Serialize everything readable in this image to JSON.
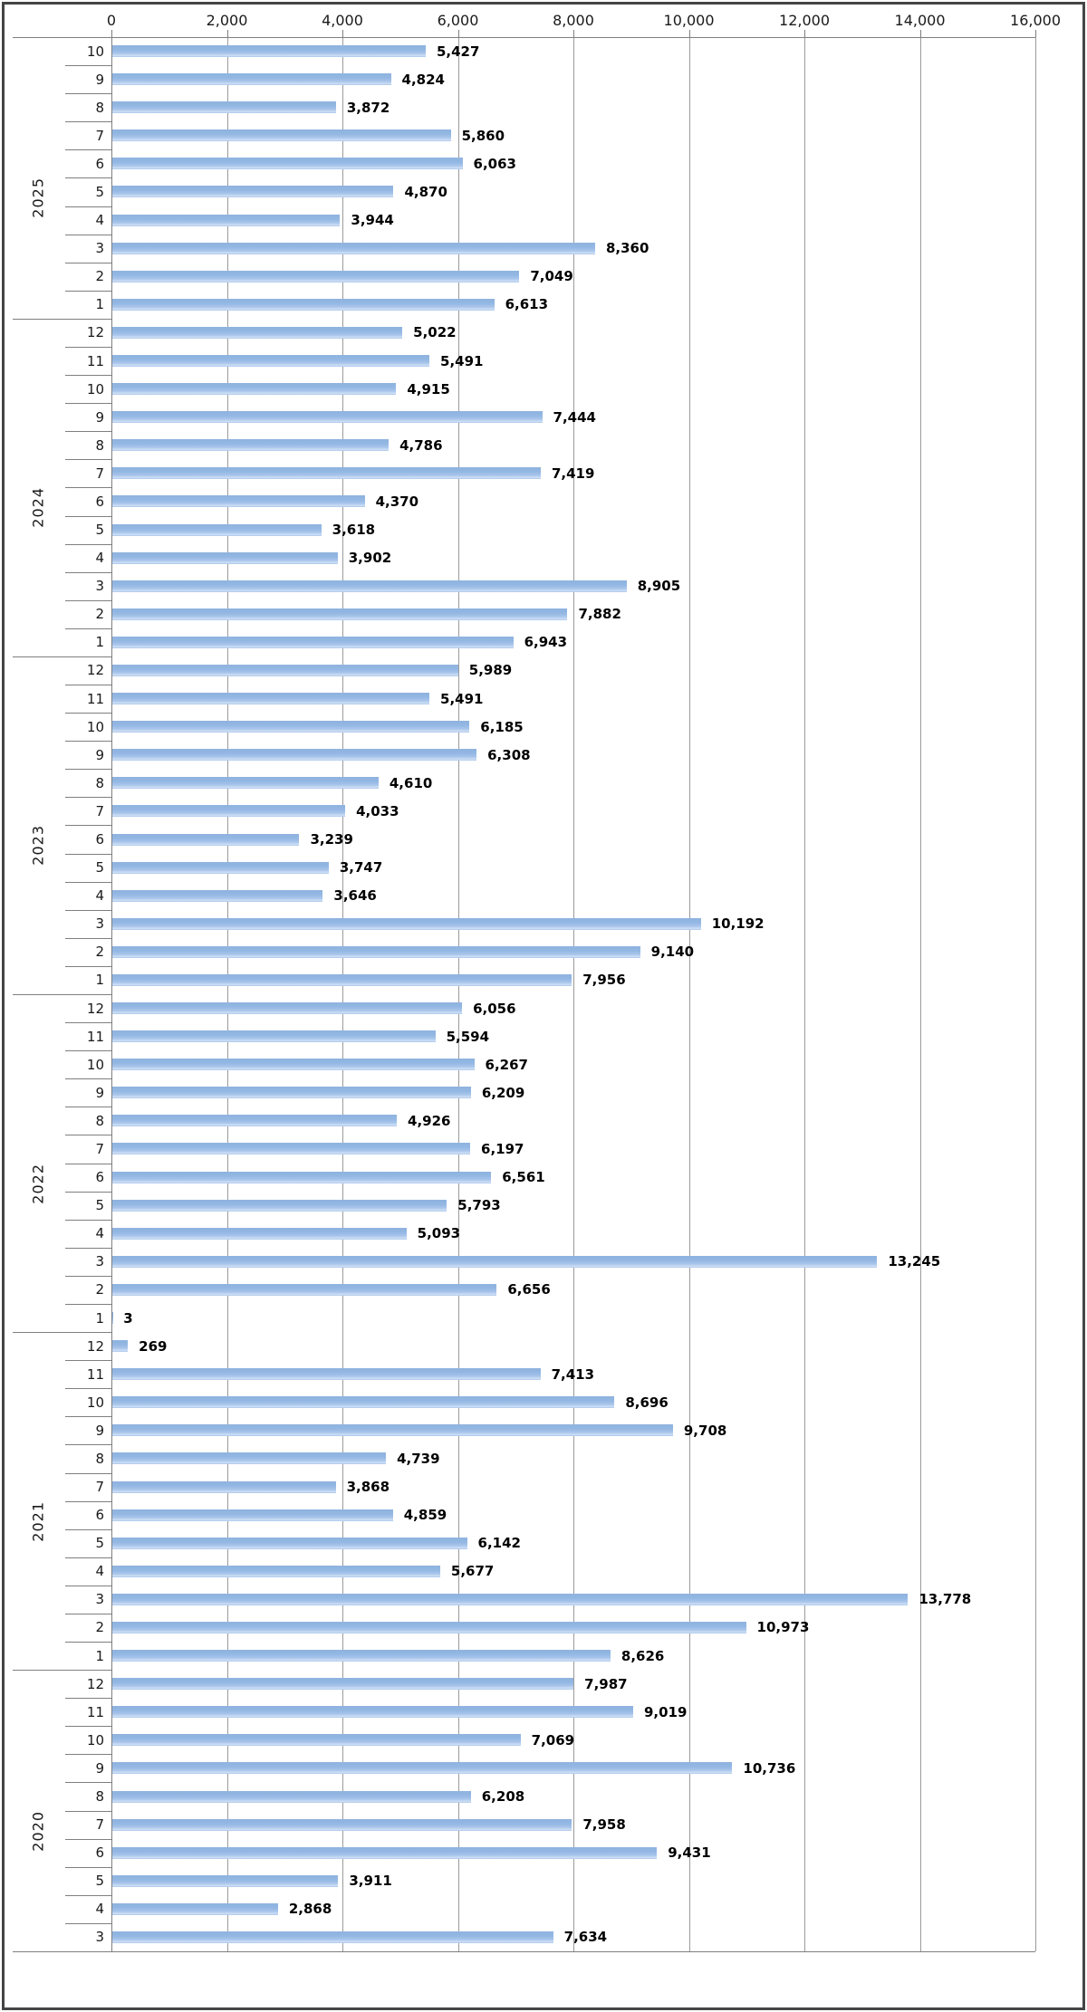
{
  "chart_data": {
    "type": "bar",
    "orientation": "horizontal",
    "title": "",
    "xlabel": "",
    "ylabel": "",
    "xlim": [
      0,
      16000
    ],
    "x_tick_values": [
      0,
      2000,
      4000,
      6000,
      8000,
      10000,
      12000,
      14000,
      16000
    ],
    "x_tick_labels": [
      "0",
      "2,000",
      "4,000",
      "6,000",
      "8,000",
      "10,000",
      "12,000",
      "14,000",
      "16,000"
    ],
    "grid": true,
    "legend": "none",
    "groups": [
      {
        "year": "2025",
        "months": [
          "10",
          "9",
          "8",
          "7",
          "6",
          "5",
          "4",
          "3",
          "2",
          "1"
        ],
        "values": [
          5427,
          4824,
          3872,
          5860,
          6063,
          4870,
          3944,
          8360,
          7049,
          6613
        ]
      },
      {
        "year": "2024",
        "months": [
          "12",
          "11",
          "10",
          "9",
          "8",
          "7",
          "6",
          "5",
          "4",
          "3",
          "2",
          "1"
        ],
        "values": [
          5022,
          5491,
          4915,
          7444,
          4786,
          7419,
          4370,
          3618,
          3902,
          8905,
          7882,
          6943
        ]
      },
      {
        "year": "2023",
        "months": [
          "12",
          "11",
          "10",
          "9",
          "8",
          "7",
          "6",
          "5",
          "4",
          "3",
          "2",
          "1"
        ],
        "values": [
          5989,
          5491,
          6185,
          6308,
          4610,
          4033,
          3239,
          3747,
          3646,
          10192,
          9140,
          7956
        ]
      },
      {
        "year": "2022",
        "months": [
          "12",
          "11",
          "10",
          "9",
          "8",
          "7",
          "6",
          "5",
          "4",
          "3",
          "2",
          "1"
        ],
        "values": [
          6056,
          5594,
          6267,
          6209,
          4926,
          6197,
          6561,
          5793,
          5093,
          13245,
          6656,
          3
        ]
      },
      {
        "year": "2021",
        "months": [
          "12",
          "11",
          "10",
          "9",
          "8",
          "7",
          "6",
          "5",
          "4",
          "3",
          "2",
          "1"
        ],
        "values": [
          269,
          7413,
          8696,
          9708,
          4739,
          3868,
          4859,
          6142,
          5677,
          13778,
          10973,
          8626
        ]
      },
      {
        "year": "2020",
        "months": [
          "12",
          "11",
          "10",
          "9",
          "8",
          "7",
          "6",
          "5",
          "4",
          "3"
        ],
        "values": [
          7987,
          9019,
          7069,
          10736,
          6208,
          7958,
          9431,
          3911,
          2868,
          7634
        ]
      }
    ],
    "data_labels": true
  },
  "colors": {
    "bar_top": "#8FB2DF",
    "bar_mid": "#93B7E3",
    "bar_low": "#A9C6EC",
    "bar_light": "#CFE0F4",
    "gridline": "#9B9B9B",
    "axis_line": "#7F7F7F",
    "value_label": "#000000",
    "border": "#454545"
  }
}
